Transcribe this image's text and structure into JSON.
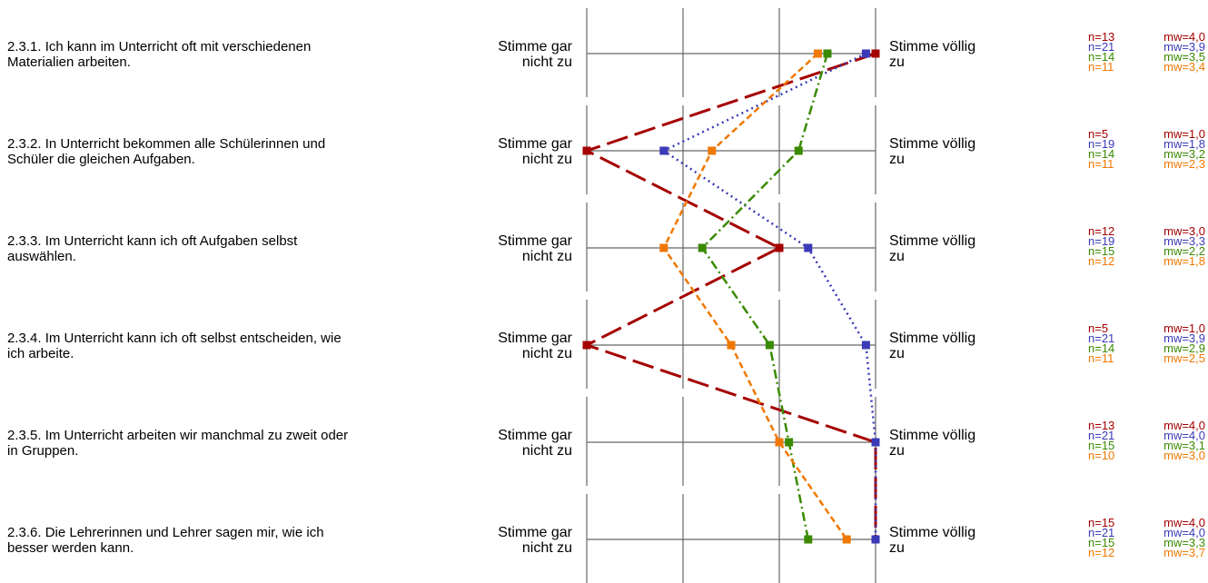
{
  "chart_data": {
    "type": "line",
    "scale": {
      "min": 1,
      "max": 4
    },
    "anchor_left": [
      "Stimme gar",
      "nicht zu"
    ],
    "anchor_right": [
      "Stimme völlig",
      "zu"
    ],
    "items": [
      {
        "text": [
          "2.3.1. Ich kann im Unterricht oft mit verschiedenen",
          "Materialien arbeiten."
        ]
      },
      {
        "text": [
          "2.3.2. In Unterricht bekommen alle Schülerinnen und",
          "Schüler die gleichen Aufgaben."
        ]
      },
      {
        "text": [
          "2.3.3. Im Unterricht kann ich oft Aufgaben selbst",
          "auswählen."
        ]
      },
      {
        "text": [
          "2.3.4. Im Unterricht kann ich oft selbst entscheiden, wie",
          "ich arbeite."
        ]
      },
      {
        "text": [
          "2.3.5. Im Unterricht arbeiten wir manchmal zu zweit oder",
          "in Gruppen."
        ]
      },
      {
        "text": [
          "2.3.6. Die Lehrerinnen und Lehrer sagen mir, wie ich",
          "besser werden kann."
        ]
      }
    ],
    "series": [
      {
        "color": "#a50000",
        "style": "longdash",
        "values": [
          4.0,
          1.0,
          3.0,
          1.0,
          4.0,
          4.0
        ],
        "n": [
          "n=13",
          "n=5",
          "n=12",
          "n=5",
          "n=13",
          "n=15"
        ],
        "mw": [
          "mw=4,0",
          "mw=1,0",
          "mw=3,0",
          "mw=1,0",
          "mw=4,0",
          "mw=4,0"
        ]
      },
      {
        "color": "#3a3ab8",
        "style": "dotted",
        "values": [
          3.9,
          1.8,
          3.3,
          3.9,
          4.0,
          4.0
        ],
        "n": [
          "n=21",
          "n=19",
          "n=19",
          "n=21",
          "n=21",
          "n=21"
        ],
        "mw": [
          "mw=3,9",
          "mw=1,8",
          "mw=3,3",
          "mw=3,9",
          "mw=4,0",
          "mw=4,0"
        ]
      },
      {
        "color": "#3a8a00",
        "style": "dashdot",
        "values": [
          3.5,
          3.2,
          2.2,
          2.9,
          3.1,
          3.3
        ],
        "n": [
          "n=14",
          "n=14",
          "n=15",
          "n=14",
          "n=15",
          "n=15"
        ],
        "mw": [
          "mw=3,5",
          "mw=3,2",
          "mw=2,2",
          "mw=2,9",
          "mw=3,1",
          "mw=3,3"
        ]
      },
      {
        "color": "#f07800",
        "style": "dashed",
        "values": [
          3.4,
          2.3,
          1.8,
          2.5,
          3.0,
          3.7
        ],
        "n": [
          "n=11",
          "n=11",
          "n=12",
          "n=11",
          "n=10",
          "n=12"
        ],
        "mw": [
          "mw=3,4",
          "mw=2,3",
          "mw=1,8",
          "mw=2,5",
          "mw=3,0",
          "mw=3,7"
        ]
      }
    ]
  }
}
